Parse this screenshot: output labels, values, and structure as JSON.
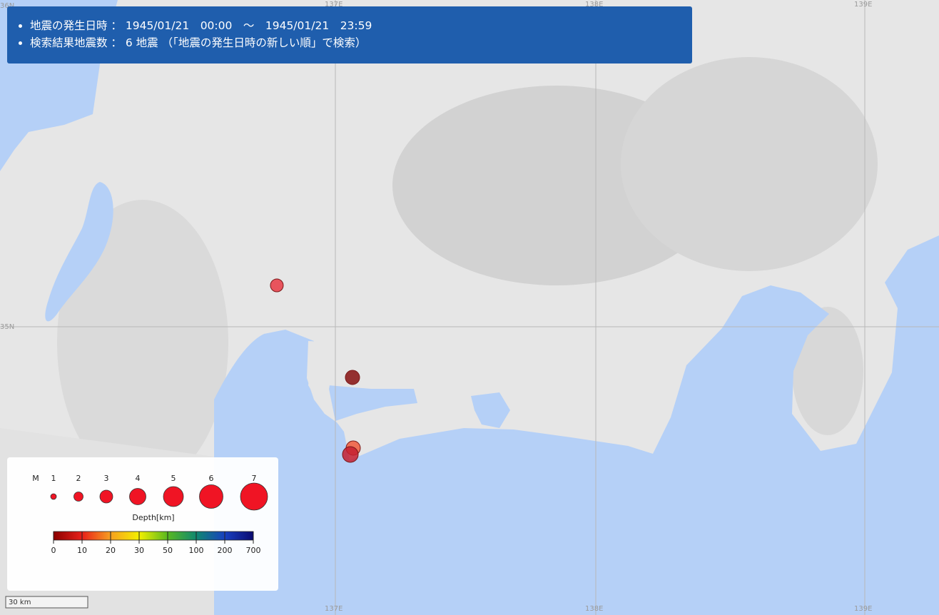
{
  "info": {
    "items": [
      "地震の発生日時 ： 1945/01/21　00:00　～　1945/01/21　23:59",
      "検索結果地震数 ： 6 地震 （「地震の発生日時の新しい順」で検索）"
    ]
  },
  "graticule": {
    "lon": [
      "137E",
      "138E",
      "139E"
    ],
    "lat": [
      "36N",
      "35N"
    ]
  },
  "legend": {
    "magnitude_label": "M",
    "magnitudes": [
      1,
      2,
      3,
      4,
      5,
      6,
      7
    ],
    "depth_label": "Depth[km]",
    "depth_ticks": [
      0,
      10,
      20,
      30,
      50,
      100,
      200,
      700
    ]
  },
  "scale": "30 km"
}
